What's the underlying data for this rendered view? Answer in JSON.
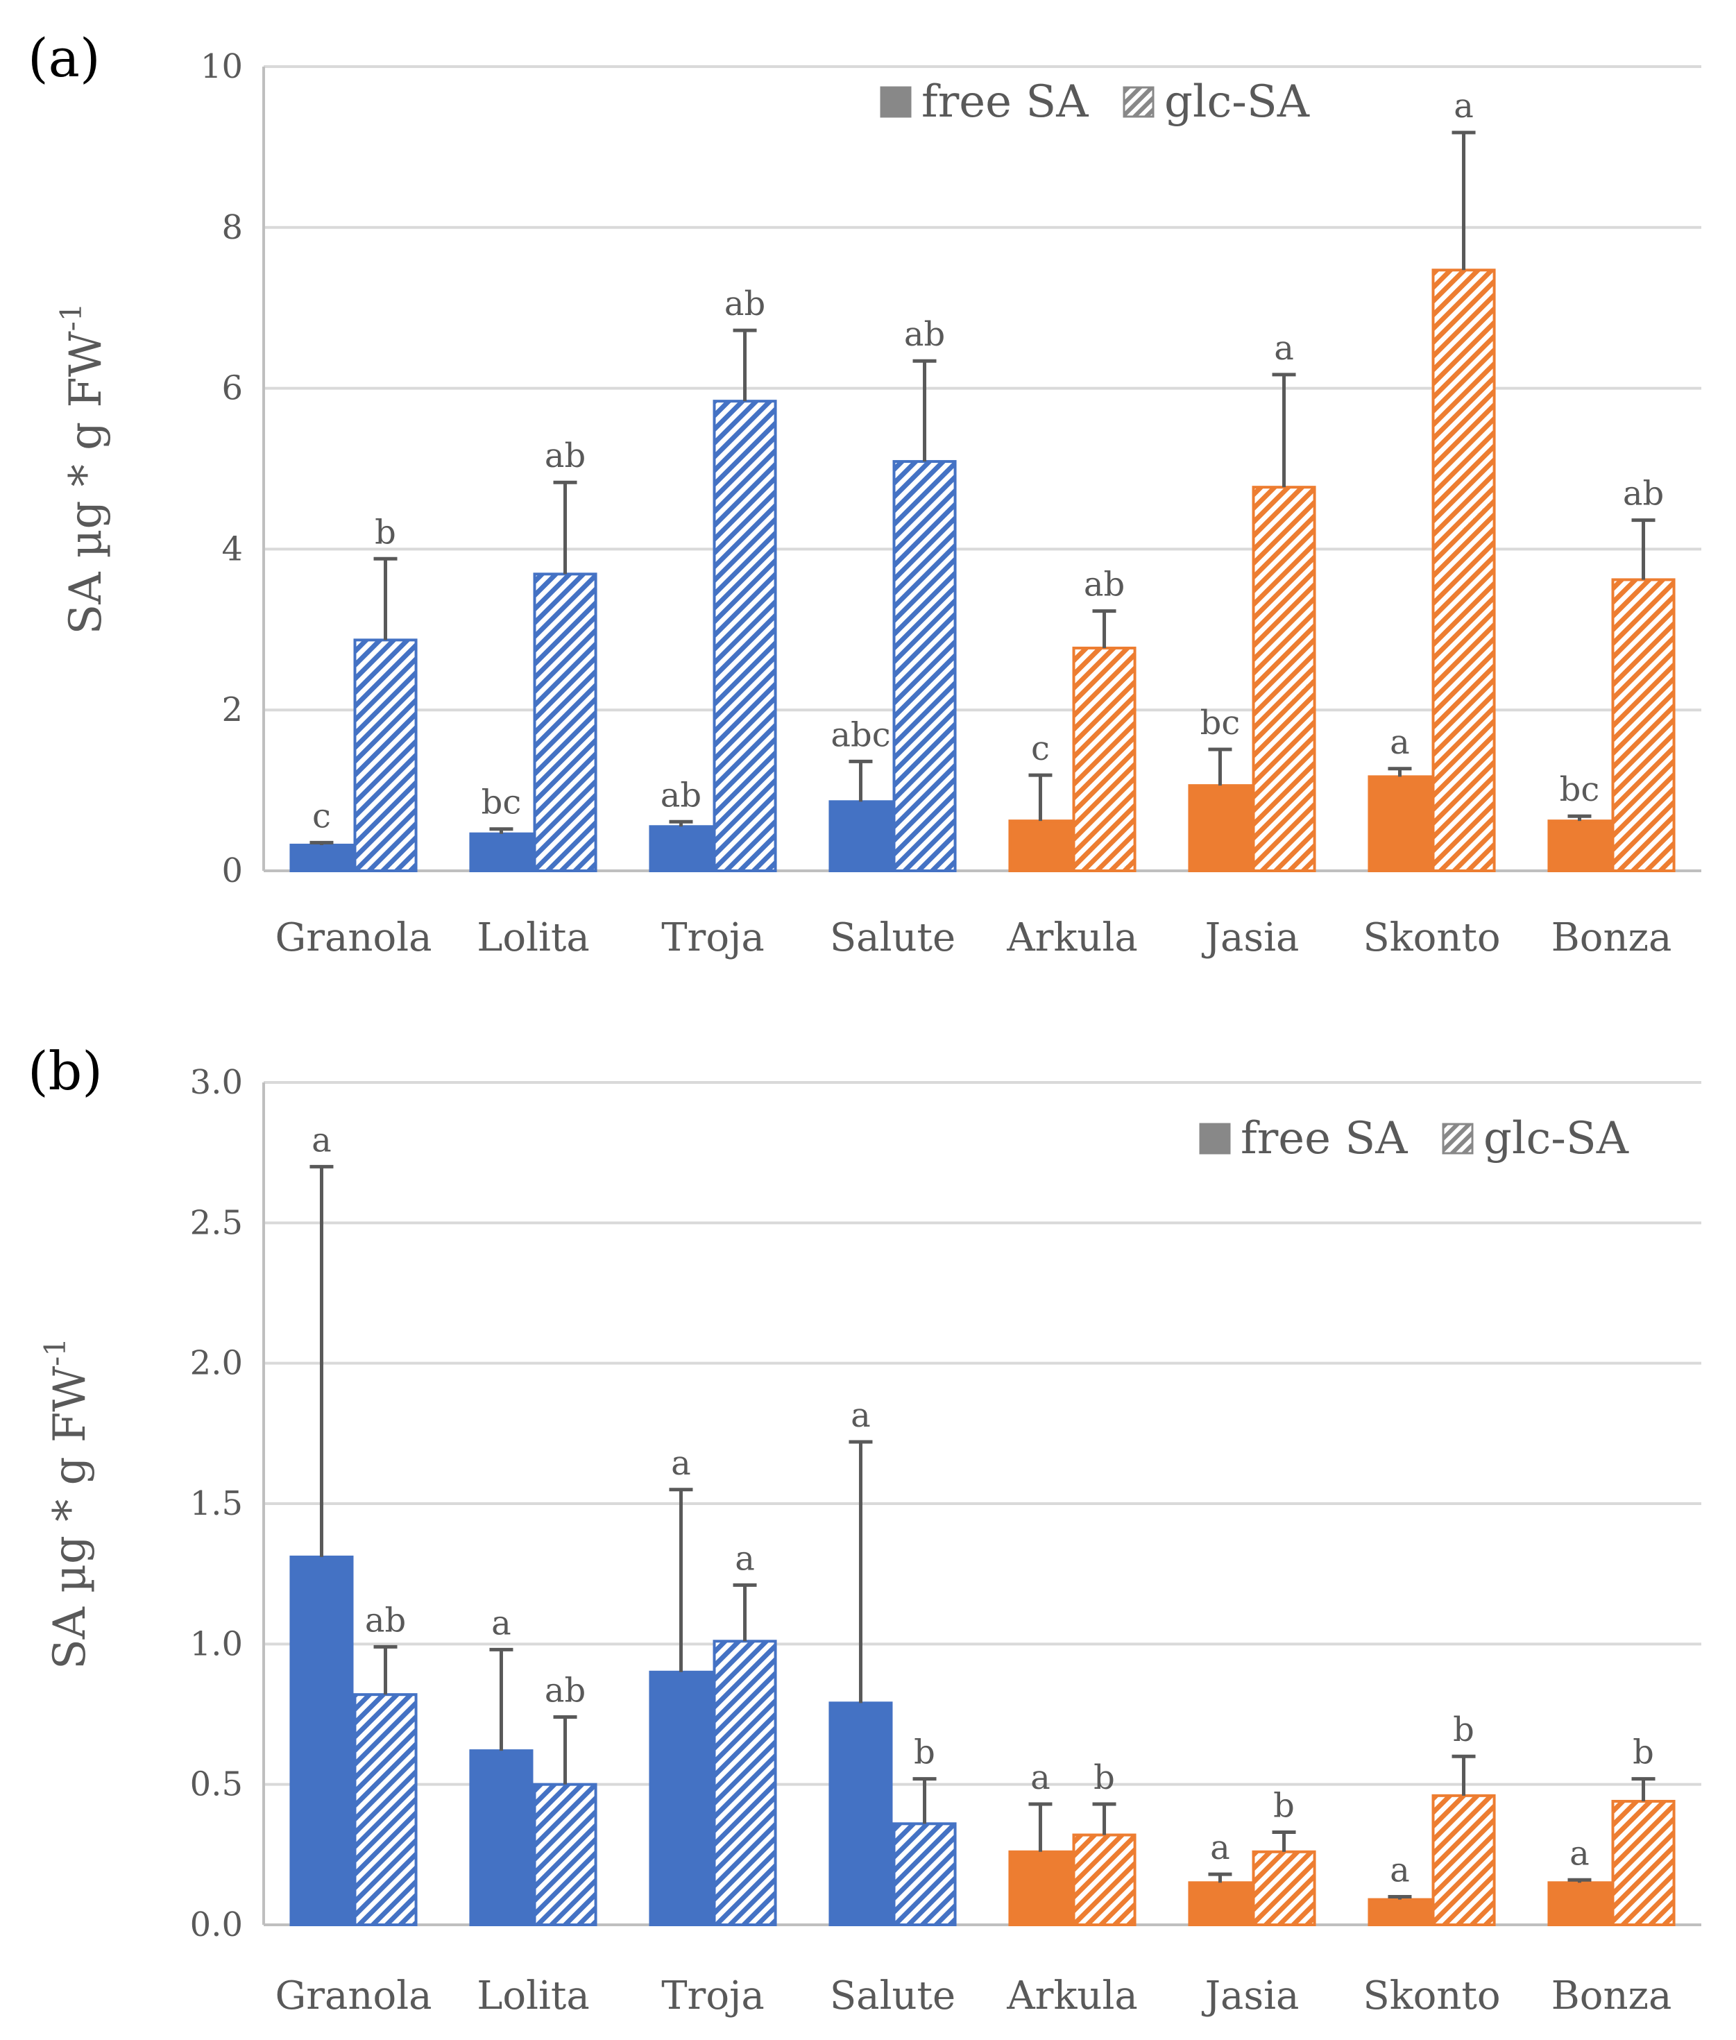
{
  "chart_data": [
    {
      "type": "bar",
      "panel_label": "(a)",
      "ylabel_main": "SA µg * g FW",
      "ylabel_sup": "-1",
      "ylim": [
        0,
        10
      ],
      "yticks": [
        "0",
        "2",
        "4",
        "6",
        "8",
        "10"
      ],
      "ytick_values": [
        0,
        2,
        4,
        6,
        8,
        10
      ],
      "grid": true,
      "legend_position": "top-right",
      "categories": [
        "Granola",
        "Lolita",
        "Troja",
        "Salute",
        "Arkula",
        "Jasia",
        "Skonto",
        "Bonza"
      ],
      "category_colors": [
        "#4472C4",
        "#4472C4",
        "#4472C4",
        "#4472C4",
        "#ED7D31",
        "#ED7D31",
        "#ED7D31",
        "#ED7D31"
      ],
      "series": [
        {
          "name": "free SA",
          "pattern": "solid",
          "values": [
            0.32,
            0.46,
            0.55,
            0.86,
            0.62,
            1.06,
            1.17,
            0.62
          ],
          "errors": [
            0.03,
            0.06,
            0.06,
            0.5,
            0.57,
            0.45,
            0.1,
            0.06
          ],
          "letters": [
            "c",
            "bc",
            "ab",
            "abc",
            "c",
            "bc",
            "a",
            "bc"
          ]
        },
        {
          "name": "glc-SA",
          "pattern": "hatched",
          "values": [
            2.87,
            3.69,
            5.84,
            5.09,
            2.77,
            4.77,
            7.47,
            3.62
          ],
          "errors": [
            1.01,
            1.14,
            0.88,
            1.25,
            0.46,
            1.4,
            1.71,
            0.74
          ],
          "letters": [
            "b",
            "ab",
            "ab",
            "ab",
            "ab",
            "a",
            "a",
            "ab"
          ]
        }
      ]
    },
    {
      "type": "bar",
      "panel_label": "(b)",
      "ylabel_main": "SA µg * g FW",
      "ylabel_sup": "-1",
      "ylim": [
        0,
        3.0
      ],
      "yticks": [
        "0.0",
        "0.5",
        "1.0",
        "1.5",
        "2.0",
        "2.5",
        "3.0"
      ],
      "ytick_values": [
        0,
        0.5,
        1.0,
        1.5,
        2.0,
        2.5,
        3.0
      ],
      "grid": true,
      "legend_position": "top-right",
      "categories": [
        "Granola",
        "Lolita",
        "Troja",
        "Salute",
        "Arkula",
        "Jasia",
        "Skonto",
        "Bonza"
      ],
      "category_colors": [
        "#4472C4",
        "#4472C4",
        "#4472C4",
        "#4472C4",
        "#ED7D31",
        "#ED7D31",
        "#ED7D31",
        "#ED7D31"
      ],
      "series": [
        {
          "name": "free SA",
          "pattern": "solid",
          "values": [
            1.31,
            0.62,
            0.9,
            0.79,
            0.26,
            0.15,
            0.09,
            0.15
          ],
          "errors": [
            1.39,
            0.36,
            0.65,
            0.93,
            0.17,
            0.03,
            0.01,
            0.01
          ],
          "letters": [
            "a",
            "a",
            "a",
            "a",
            "a",
            "a",
            "a",
            "a"
          ]
        },
        {
          "name": "glc-SA",
          "pattern": "hatched",
          "values": [
            0.82,
            0.5,
            1.01,
            0.36,
            0.32,
            0.26,
            0.46,
            0.44
          ],
          "errors": [
            0.17,
            0.24,
            0.2,
            0.16,
            0.11,
            0.07,
            0.14,
            0.08
          ],
          "letters": [
            "ab",
            "ab",
            "a",
            "b",
            "b",
            "b",
            "b",
            "b"
          ]
        }
      ]
    }
  ]
}
